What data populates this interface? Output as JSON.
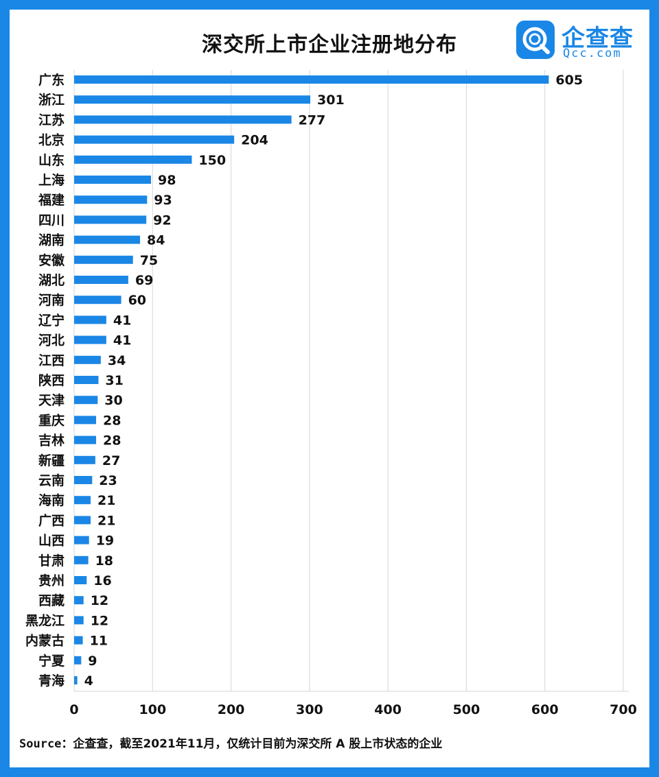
{
  "chart_data": {
    "type": "bar",
    "orientation": "horizontal",
    "title": "深交所上市企业注册地分布",
    "categories": [
      "广东",
      "浙江",
      "江苏",
      "北京",
      "山东",
      "上海",
      "福建",
      "四川",
      "湖南",
      "安徽",
      "湖北",
      "河南",
      "辽宁",
      "河北",
      "江西",
      "陕西",
      "天津",
      "重庆",
      "吉林",
      "新疆",
      "云南",
      "海南",
      "广西",
      "山西",
      "甘肃",
      "贵州",
      "西藏",
      "黑龙江",
      "内蒙古",
      "宁夏",
      "青海"
    ],
    "values": [
      605,
      301,
      277,
      204,
      150,
      98,
      93,
      92,
      84,
      75,
      69,
      60,
      41,
      41,
      34,
      31,
      30,
      28,
      28,
      27,
      23,
      21,
      21,
      19,
      18,
      16,
      12,
      12,
      11,
      9,
      4
    ],
    "xlim": [
      0,
      700
    ],
    "xticks": [
      "0",
      "100",
      "200",
      "300",
      "400",
      "500",
      "600",
      "700"
    ],
    "grid": true,
    "bar_color": "#1a87e6"
  },
  "brand": {
    "name": "企查查",
    "domain": "Qcc.com",
    "color": "#1a87e6"
  },
  "source": {
    "label": "Source：",
    "text": "企查查，截至2021年11月，仅统计目前为深交所 A 股上市状态的企业"
  }
}
